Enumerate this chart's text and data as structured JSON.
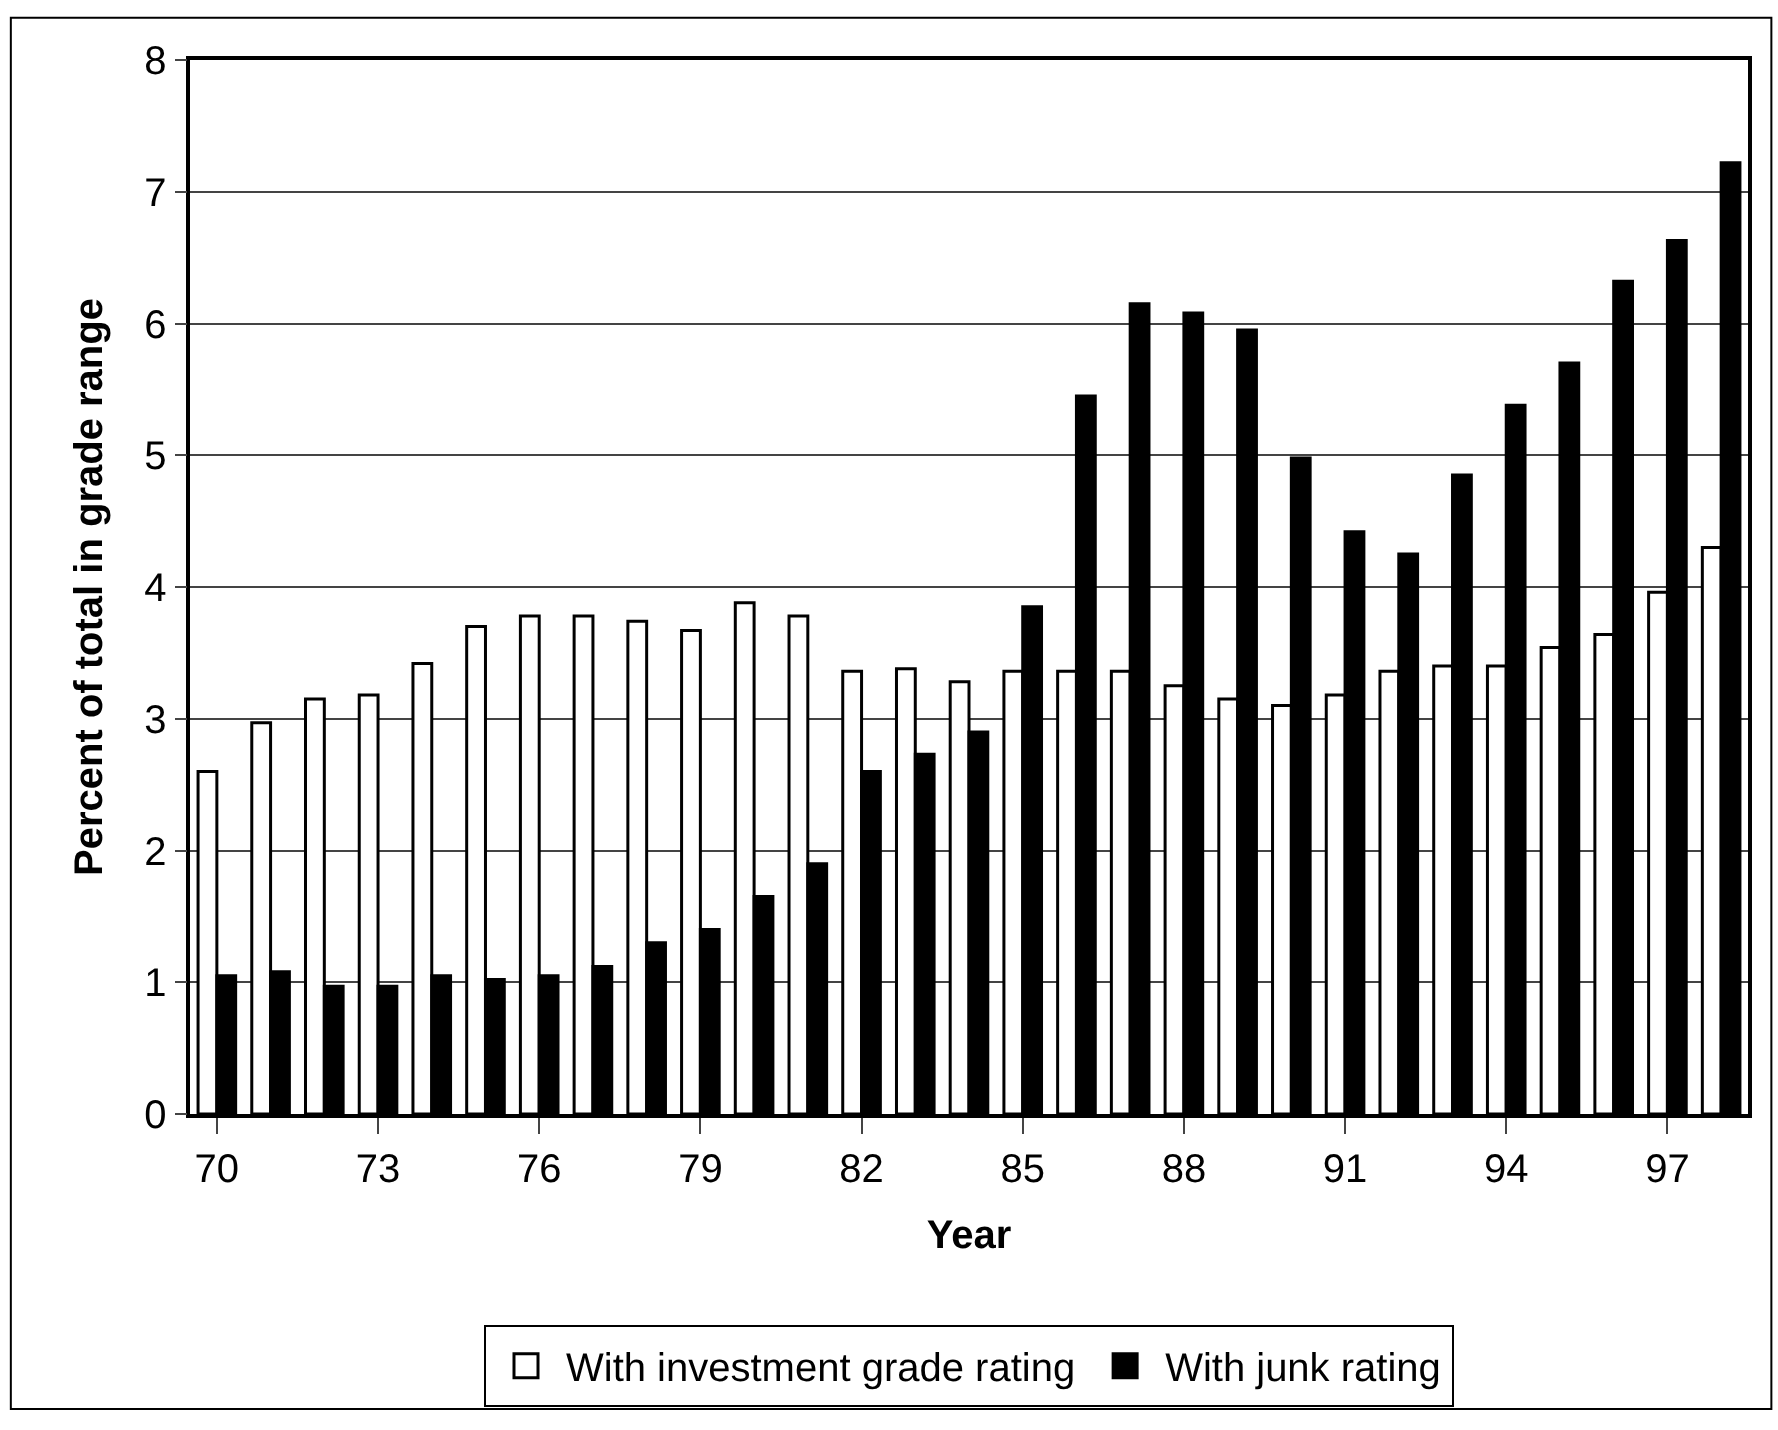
{
  "chart_data": {
    "type": "bar",
    "xlabel": "Year",
    "ylabel": "Percent of total in grade range",
    "categories": [
      "70",
      null,
      null,
      "73",
      null,
      null,
      "76",
      null,
      null,
      "79",
      null,
      null,
      "82",
      null,
      null,
      "85",
      null,
      null,
      "88",
      null,
      null,
      "91",
      null,
      null,
      "94",
      null,
      null,
      "97",
      null
    ],
    "series": [
      {
        "name": "With investment grade rating",
        "color": "#ffffff",
        "values": [
          2.6,
          2.97,
          3.15,
          3.18,
          3.42,
          3.7,
          3.78,
          3.78,
          3.74,
          3.67,
          3.88,
          3.78,
          3.36,
          3.38,
          3.28,
          3.36,
          3.36,
          3.36,
          3.25,
          3.15,
          3.1,
          3.18,
          3.36,
          3.4,
          3.4,
          3.54,
          3.64,
          3.96,
          4.3
        ]
      },
      {
        "name": "With junk rating",
        "color": "#000000",
        "values": [
          1.05,
          1.08,
          0.97,
          0.97,
          1.05,
          1.02,
          1.05,
          1.12,
          1.3,
          1.4,
          1.65,
          1.9,
          2.6,
          2.73,
          2.9,
          3.85,
          5.45,
          6.15,
          6.08,
          5.95,
          4.98,
          4.42,
          4.25,
          4.85,
          5.38,
          5.7,
          6.32,
          6.63,
          7.22
        ]
      }
    ],
    "ylim": [
      0,
      8
    ],
    "yticks": [
      0,
      1,
      2,
      3,
      4,
      5,
      6,
      7,
      8
    ],
    "grid": "y",
    "legend": "bottom"
  }
}
